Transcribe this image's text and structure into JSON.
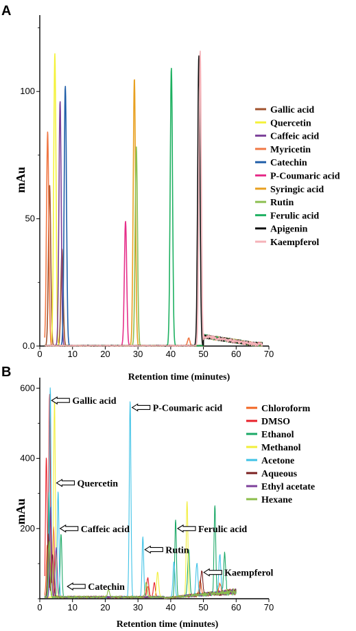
{
  "figure": {
    "panels": [
      {
        "letter": "A"
      },
      {
        "letter": "B"
      }
    ]
  },
  "chart_data": [
    {
      "type": "line",
      "panel": "A",
      "title": "",
      "xlabel": "Retention time (minutes)",
      "ylabel": "mAu",
      "xlim": [
        0,
        70
      ],
      "ylim": [
        0,
        130
      ],
      "xticks": [
        0,
        10,
        20,
        30,
        40,
        50,
        60,
        70
      ],
      "yticks": [
        0,
        50,
        100
      ],
      "ytick_labels": [
        "0.0",
        "50",
        "100"
      ],
      "legend_position": "right",
      "series": [
        {
          "name": "Gallic acid",
          "color": "#a0522d",
          "peaks": [
            [
              3.0,
              63
            ],
            [
              6.8,
              38
            ]
          ]
        },
        {
          "name": "Quercetin",
          "color": "#f4f23a",
          "peaks": [
            [
              4.6,
              115
            ]
          ]
        },
        {
          "name": "Caffeic acid",
          "color": "#7b3f99",
          "peaks": [
            [
              6.2,
              96
            ]
          ]
        },
        {
          "name": "Myricetin",
          "color": "#f07845",
          "peaks": [
            [
              2.4,
              84
            ],
            [
              45.5,
              3
            ]
          ]
        },
        {
          "name": "Catechin",
          "color": "#1f5ea8",
          "peaks": [
            [
              7.8,
              102
            ]
          ]
        },
        {
          "name": "P-Coumaric acid",
          "color": "#e62f8a",
          "peaks": [
            [
              26.2,
              49
            ]
          ]
        },
        {
          "name": "Syringic acid",
          "color": "#e8a020",
          "peaks": [
            [
              28.9,
              105
            ]
          ]
        },
        {
          "name": "Rutin",
          "color": "#8cbf50",
          "peaks": [
            [
              29.5,
              78
            ]
          ]
        },
        {
          "name": "Ferulic acid",
          "color": "#1db060",
          "peaks": [
            [
              40.2,
              109
            ]
          ]
        },
        {
          "name": "Apigenin",
          "color": "#111111",
          "peaks": [
            [
              48.6,
              114
            ]
          ]
        },
        {
          "name": "Kaempferol",
          "color": "#f5b2b8",
          "peaks": [
            [
              49.0,
              116
            ]
          ]
        }
      ]
    },
    {
      "type": "line",
      "panel": "B",
      "title": "",
      "xlabel": "Retention time (minutes)",
      "ylabel": "mAu",
      "xlim": [
        0,
        70
      ],
      "ylim": [
        0,
        630
      ],
      "xticks": [
        0,
        10,
        20,
        30,
        40,
        50,
        60,
        70
      ],
      "yticks": [
        200,
        400,
        600
      ],
      "legend_position": "right",
      "series": [
        {
          "name": "Chloroform",
          "color": "#f26522",
          "peaks": [
            [
              2.3,
              150
            ],
            [
              3.6,
              110
            ],
            [
              33,
              30
            ],
            [
              49,
              40
            ],
            [
              55,
              25
            ]
          ]
        },
        {
          "name": "DMSO",
          "color": "#e8202a",
          "peaks": [
            [
              2.0,
              400
            ],
            [
              3.0,
              580
            ],
            [
              4.2,
              200
            ],
            [
              33,
              55
            ],
            [
              35,
              40
            ]
          ]
        },
        {
          "name": "Ethanol",
          "color": "#1aa866",
          "peaks": [
            [
              2.8,
              300
            ],
            [
              6.5,
              180
            ],
            [
              41.5,
              220
            ],
            [
              45.5,
              130
            ],
            [
              53.5,
              250
            ],
            [
              56.5,
              110
            ]
          ]
        },
        {
          "name": "Methanol",
          "color": "#f2ee3a",
          "peaks": [
            [
              4.5,
              560
            ],
            [
              45.0,
              270
            ],
            [
              36,
              70
            ]
          ]
        },
        {
          "name": "Acetone",
          "color": "#3ec2e6",
          "peaks": [
            [
              3.2,
              600
            ],
            [
              5.6,
              300
            ],
            [
              27.6,
              560
            ],
            [
              31.5,
              170
            ],
            [
              41,
              100
            ],
            [
              48,
              90
            ],
            [
              55,
              110
            ]
          ]
        },
        {
          "name": "Aqueous",
          "color": "#7a1f1f",
          "peaks": [
            [
              2.6,
              180
            ],
            [
              3.9,
              120
            ],
            [
              49.5,
              70
            ]
          ]
        },
        {
          "name": "Ethyl acetate",
          "color": "#7d3f9b",
          "peaks": [
            [
              3.3,
              260
            ],
            [
              5.0,
              140
            ]
          ]
        },
        {
          "name": "Hexane",
          "color": "#8bbd4a",
          "peaks": [
            [
              2.9,
              160
            ],
            [
              21,
              20
            ],
            [
              32.5,
              40
            ]
          ]
        }
      ],
      "annotations": [
        {
          "text": "Gallic acid",
          "x": 3.0,
          "y": 565
        },
        {
          "text": "P-Coumaric acid",
          "x": 27.6,
          "y": 545
        },
        {
          "text": "Quercetin",
          "x": 4.5,
          "y": 330
        },
        {
          "text": "Caffeic acid",
          "x": 5.6,
          "y": 200
        },
        {
          "text": "Ferulic acid",
          "x": 41.5,
          "y": 200
        },
        {
          "text": "Rutin",
          "x": 31.5,
          "y": 140
        },
        {
          "text": "Kaempferol",
          "x": 49.5,
          "y": 75
        },
        {
          "text": "Catechin",
          "x": 7.8,
          "y": 35
        }
      ]
    }
  ]
}
